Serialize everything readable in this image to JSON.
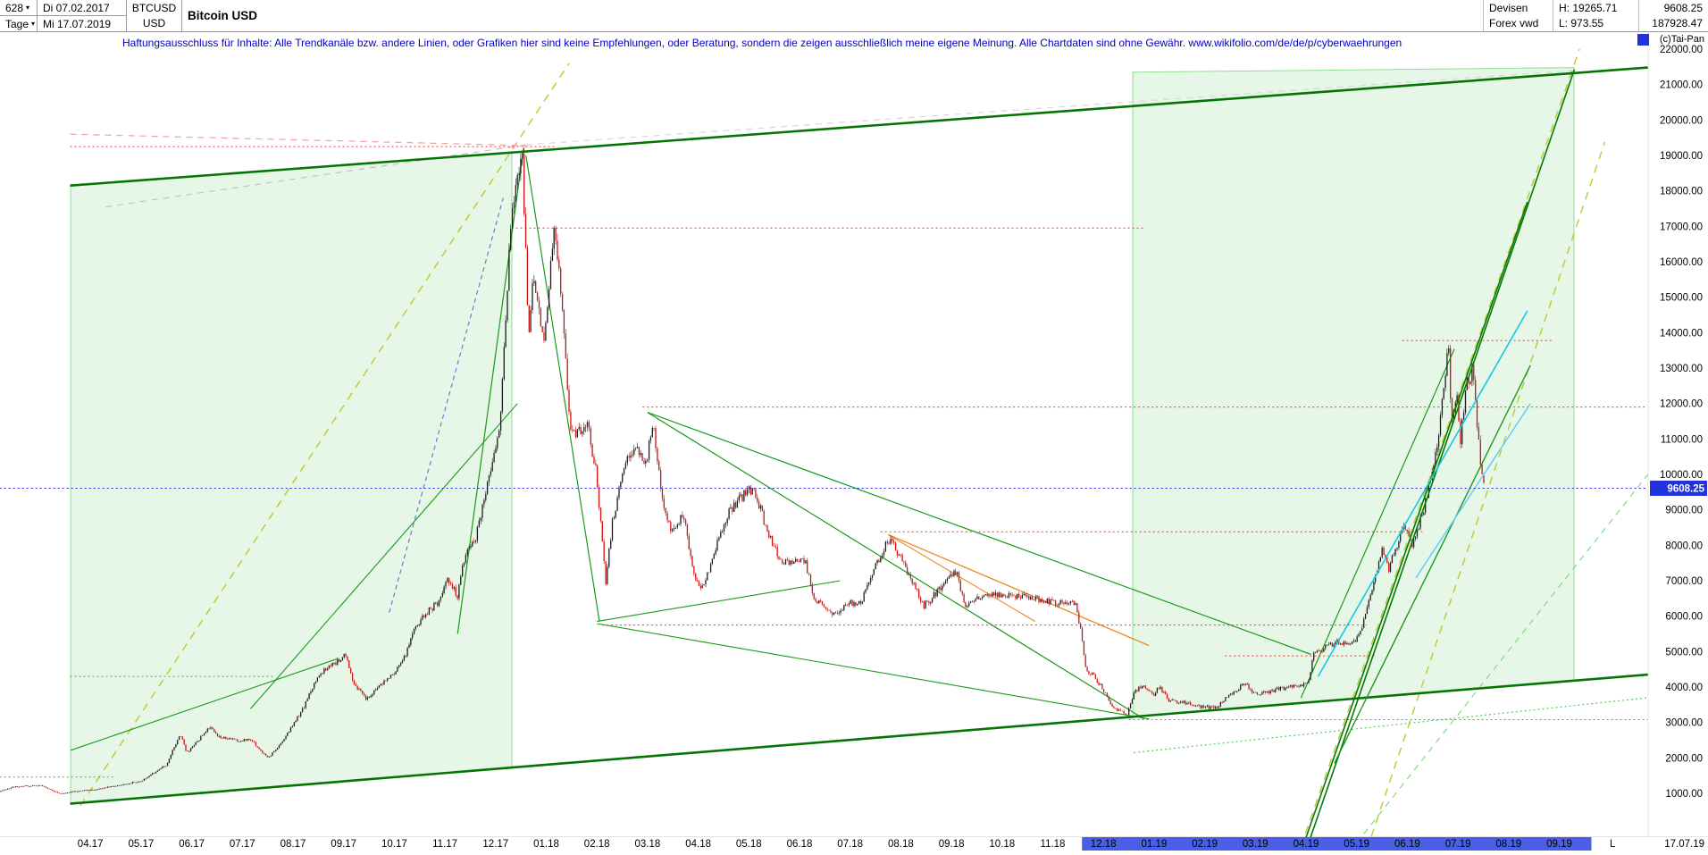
{
  "header": {
    "bars_count": "628",
    "period": "Tage",
    "caret": "▾",
    "start_date": "Di 07.02.2017",
    "end_date": "Mi 17.07.2019",
    "symbol": "BTCUSD",
    "currency": "USD",
    "title": "Bitcoin USD",
    "source1": "Devisen",
    "source2": "Forex vwd",
    "high_prefix": "H:",
    "high": "19265.71",
    "low_prefix": "L:",
    "low": "973.55",
    "last_price": "9608.25",
    "volume": "187928.47",
    "watermark": "(c)Tai-Pan"
  },
  "disclaimer": "Haftungsausschluss für Inhalte: Alle Trendkanäle bzw. andere Linien, oder Grafiken hier sind keine Empfehlungen, oder Beratung, sondern die zeigen ausschließlich meine eigene Meinung. Alle Chartdaten sind ohne Gewähr.  www.wikifolio.com/de/de/p/cyberwaehrungen",
  "chart_data": {
    "type": "candlestick",
    "symbol": "BTCUSD",
    "title": "Bitcoin USD",
    "x_unit": "months_from_04.17_tick",
    "y_unit": "USD",
    "ylim": [
      1000,
      22000
    ],
    "y_step": 1000,
    "high": 19265.71,
    "low": 973.55,
    "current_price": 9608.25,
    "price_tag": "9608.25",
    "x_tick_labels": [
      "04.17",
      "05.17",
      "06.17",
      "07.17",
      "08.17",
      "09.17",
      "10.17",
      "11.17",
      "12.17",
      "01.18",
      "02.18",
      "03.18",
      "04.18",
      "05.18",
      "06.18",
      "07.18",
      "08.18",
      "09.18",
      "10.18",
      "11.18",
      "12.18",
      "01.19",
      "02.19",
      "03.19",
      "04.19",
      "05.19",
      "06.19",
      "07.19",
      "08.19",
      "09.19"
    ],
    "x_highlight_from_index": 20,
    "x_highlight_color": "#4b5fe6",
    "last_marker": "L",
    "last_date": "17.07.19",
    "colors": {
      "up": "#1b1b1b",
      "down": "#cc1111",
      "channel_green": "#057405",
      "accent_blue": "#2233dd",
      "region_fill": "rgba(144,220,144,0.22)",
      "region_stroke": "rgba(80,200,80,0.6)"
    },
    "close_anchors": [
      [
        -1.8,
        1056
      ],
      [
        -1.5,
        1190
      ],
      [
        -1.0,
        1230
      ],
      [
        -0.6,
        990
      ],
      [
        -0.2,
        1080
      ],
      [
        0.0,
        1090
      ],
      [
        0.5,
        1210
      ],
      [
        1.0,
        1350
      ],
      [
        1.5,
        1800
      ],
      [
        1.77,
        2680
      ],
      [
        1.9,
        2150
      ],
      [
        2.1,
        2450
      ],
      [
        2.37,
        2920
      ],
      [
        2.5,
        2620
      ],
      [
        2.9,
        2480
      ],
      [
        3.15,
        2540
      ],
      [
        3.5,
        1990
      ],
      [
        3.7,
        2280
      ],
      [
        3.97,
        2850
      ],
      [
        4.2,
        3400
      ],
      [
        4.5,
        4350
      ],
      [
        4.9,
        4740
      ],
      [
        5.03,
        4950
      ],
      [
        5.2,
        4120
      ],
      [
        5.45,
        3640
      ],
      [
        5.8,
        4180
      ],
      [
        6.0,
        4360
      ],
      [
        6.2,
        4820
      ],
      [
        6.4,
        5620
      ],
      [
        6.63,
        6080
      ],
      [
        6.9,
        6440
      ],
      [
        7.03,
        7080
      ],
      [
        7.25,
        6560
      ],
      [
        7.4,
        7800
      ],
      [
        7.6,
        8180
      ],
      [
        7.87,
        9880
      ],
      [
        8.1,
        11600
      ],
      [
        8.3,
        17200
      ],
      [
        8.52,
        19280
      ],
      [
        8.65,
        13900
      ],
      [
        8.75,
        15750
      ],
      [
        8.9,
        14300
      ],
      [
        8.97,
        13900
      ],
      [
        9.16,
        17080
      ],
      [
        9.35,
        14200
      ],
      [
        9.45,
        11600
      ],
      [
        9.55,
        11100
      ],
      [
        9.8,
        11500
      ],
      [
        9.97,
        10200
      ],
      [
        10.1,
        8300
      ],
      [
        10.17,
        6920
      ],
      [
        10.3,
        8600
      ],
      [
        10.55,
        10300
      ],
      [
        10.8,
        10700
      ],
      [
        10.97,
        10300
      ],
      [
        11.1,
        11480
      ],
      [
        11.3,
        9100
      ],
      [
        11.5,
        8300
      ],
      [
        11.7,
        8900
      ],
      [
        11.95,
        7000
      ],
      [
        12.1,
        6800
      ],
      [
        12.35,
        7990
      ],
      [
        12.6,
        8900
      ],
      [
        12.8,
        9320
      ],
      [
        13.1,
        9620
      ],
      [
        13.3,
        8700
      ],
      [
        13.6,
        7580
      ],
      [
        13.9,
        7490
      ],
      [
        14.1,
        7620
      ],
      [
        14.3,
        6480
      ],
      [
        14.6,
        6080
      ],
      [
        14.8,
        6180
      ],
      [
        14.97,
        6390
      ],
      [
        15.2,
        6350
      ],
      [
        15.5,
        7390
      ],
      [
        15.75,
        8190
      ],
      [
        15.97,
        7740
      ],
      [
        16.2,
        7010
      ],
      [
        16.45,
        6290
      ],
      [
        16.6,
        6490
      ],
      [
        16.9,
        7010
      ],
      [
        17.1,
        7290
      ],
      [
        17.25,
        6310
      ],
      [
        17.5,
        6490
      ],
      [
        17.8,
        6640
      ],
      [
        18.0,
        6590
      ],
      [
        18.3,
        6580
      ],
      [
        18.6,
        6540
      ],
      [
        18.9,
        6420
      ],
      [
        19.1,
        6380
      ],
      [
        19.45,
        6340
      ],
      [
        19.55,
        5590
      ],
      [
        19.65,
        4490
      ],
      [
        19.8,
        4340
      ],
      [
        19.95,
        4040
      ],
      [
        20.2,
        3400
      ],
      [
        20.47,
        3220
      ],
      [
        20.6,
        3840
      ],
      [
        20.8,
        4080
      ],
      [
        20.97,
        3740
      ],
      [
        21.1,
        4020
      ],
      [
        21.3,
        3610
      ],
      [
        21.6,
        3560
      ],
      [
        21.9,
        3450
      ],
      [
        22.2,
        3410
      ],
      [
        22.6,
        3890
      ],
      [
        22.8,
        4110
      ],
      [
        22.97,
        3830
      ],
      [
        23.2,
        3850
      ],
      [
        23.5,
        3950
      ],
      [
        23.8,
        4020
      ],
      [
        23.97,
        4090
      ],
      [
        24.06,
        4140
      ],
      [
        24.13,
        4880
      ],
      [
        24.3,
        5040
      ],
      [
        24.6,
        5290
      ],
      [
        24.8,
        5240
      ],
      [
        24.97,
        5320
      ],
      [
        25.1,
        5690
      ],
      [
        25.35,
        6990
      ],
      [
        25.5,
        7940
      ],
      [
        25.62,
        7290
      ],
      [
        25.85,
        8240
      ],
      [
        25.97,
        8540
      ],
      [
        26.1,
        7990
      ],
      [
        26.3,
        8890
      ],
      [
        26.6,
        10760
      ],
      [
        26.81,
        13760
      ],
      [
        26.87,
        11480
      ],
      [
        26.97,
        12280
      ],
      [
        27.05,
        10990
      ],
      [
        27.16,
        12480
      ],
      [
        27.29,
        12940
      ],
      [
        27.45,
        10280
      ],
      [
        27.52,
        9608.25
      ]
    ],
    "levels": [
      {
        "price": 19250,
        "t1": -0.4,
        "t2": 9.2,
        "color": "#ee3333",
        "dash": "2,3"
      },
      {
        "price": 16950,
        "t1": 8.4,
        "t2": 20.8,
        "color": "#ee3333",
        "dash": "2,3"
      },
      {
        "price": 11900,
        "t1": 10.9,
        "t2": 30.7,
        "color": "#ee3333",
        "dash": "2,3"
      },
      {
        "price": 13780,
        "t1": 25.9,
        "t2": 28.9,
        "color": "#ee3333",
        "dash": "2,3"
      },
      {
        "price": 8380,
        "t1": 15.6,
        "t2": 26.3,
        "color": "#ee3333",
        "dash": "2,3"
      },
      {
        "price": 5750,
        "t1": 10.1,
        "t2": 25.2,
        "color": "#ee3333",
        "dash": "2,3"
      },
      {
        "price": 4880,
        "t1": 22.4,
        "t2": 25.4,
        "color": "#ee3333",
        "dash": "2,3"
      },
      {
        "price": 3080,
        "t1": 20.5,
        "t2": 30.75,
        "color": "#33bb33",
        "dash": "2,3"
      },
      {
        "price": 4300,
        "t1": -0.4,
        "t2": 3.6,
        "color": "#33bb33",
        "dash": "2,3"
      },
      {
        "price": 1460,
        "t1": -1.79,
        "t2": 0.5,
        "color": "#33bb33",
        "dash": "2,3"
      },
      {
        "price": 9608.25,
        "t1": -1.79,
        "t2": 30.75,
        "color": "#2222ee",
        "dash": "2,3",
        "front": true
      }
    ],
    "trendlines": [
      {
        "p1": [
          -0.4,
          18150
        ],
        "p2": [
          30.75,
          21480
        ],
        "color": "#057405",
        "w": 2.6,
        "front": true
      },
      {
        "p1": [
          -0.4,
          708
        ],
        "p2": [
          30.75,
          4350
        ],
        "color": "#057405",
        "w": 2.6,
        "front": true
      },
      {
        "p1": [
          -0.2,
          650
        ],
        "p2": [
          9.45,
          21600
        ],
        "color": "#b8cc2a",
        "w": 1.4,
        "dash": "9,7"
      },
      {
        "p1": [
          23.8,
          -900
        ],
        "p2": [
          29.4,
          22000
        ],
        "color": "#b8cc2a",
        "w": 1.4,
        "dash": "9,7"
      },
      {
        "p1": [
          25.2,
          -600
        ],
        "p2": [
          29.9,
          19380
        ],
        "color": "#b8cc2a",
        "w": 1.4,
        "dash": "9,7"
      },
      {
        "p1": [
          25.0,
          -400
        ],
        "p2": [
          30.75,
          10000
        ],
        "color": "#7ddd7d",
        "w": 1.2,
        "dash": "7,6"
      },
      {
        "p1": [
          0.3,
          17550
        ],
        "p2": [
          8.6,
          19300
        ],
        "color": "#c4c4c4",
        "w": 1.2,
        "dash": "7,6"
      },
      {
        "p1": [
          8.6,
          19300
        ],
        "p2": [
          29.3,
          21400
        ],
        "color": "#d8d8d8",
        "w": 1.2,
        "dash": "7,6"
      },
      {
        "p1": [
          -0.4,
          19600
        ],
        "p2": [
          8.6,
          19280
        ],
        "color": "#f0a0a0",
        "w": 1.2,
        "dash": "7,6"
      },
      {
        "p1": [
          5.9,
          6100
        ],
        "p2": [
          8.15,
          17800
        ],
        "color": "#7777cc",
        "w": 1.2,
        "dash": "5,4"
      },
      {
        "p1": [
          15.75,
          8300
        ],
        "p2": [
          20.9,
          5170
        ],
        "color": "#ee8822",
        "w": 1.3
      },
      {
        "p1": [
          15.75,
          8300
        ],
        "p2": [
          18.65,
          5850
        ],
        "color": "#ee8822",
        "w": 1.1
      },
      {
        "p1": [
          11.0,
          11750
        ],
        "p2": [
          20.8,
          3100
        ],
        "color": "#1a9a1a",
        "w": 1.2
      },
      {
        "p1": [
          11.0,
          11750
        ],
        "p2": [
          24.1,
          4920
        ],
        "color": "#1a9a1a",
        "w": 1.2
      },
      {
        "p1": [
          10.0,
          5850
        ],
        "p2": [
          14.8,
          7000
        ],
        "color": "#1a9a1a",
        "w": 1.1
      },
      {
        "p1": [
          10.0,
          5790
        ],
        "p2": [
          20.9,
          3100
        ],
        "color": "#1a9a1a",
        "w": 1.1
      },
      {
        "p1": [
          8.6,
          19000
        ],
        "p2": [
          10.05,
          5850
        ],
        "color": "#1a9a1a",
        "w": 1.2
      },
      {
        "p1": [
          -0.39,
          2215
        ],
        "p2": [
          4.88,
          4800
        ],
        "color": "#1a9a1a",
        "w": 1.1
      },
      {
        "p1": [
          3.16,
          3385
        ],
        "p2": [
          8.43,
          12000
        ],
        "color": "#1a9a1a",
        "w": 1.1
      },
      {
        "p1": [
          7.25,
          5500
        ],
        "p2": [
          8.55,
          19200
        ],
        "color": "#1a9a1a",
        "w": 1.2
      },
      {
        "p1": [
          23.9,
          3690
        ],
        "p2": [
          26.93,
          13540
        ],
        "color": "#1a9a1a",
        "w": 1.2
      },
      {
        "p1": [
          20.6,
          2150
        ],
        "p2": [
          30.75,
          3700
        ],
        "color": "#44cc44",
        "w": 1.1,
        "dash": "2,3"
      },
      {
        "p1": [
          24.0,
          -615
        ],
        "p2": [
          29.3,
          21430
        ],
        "color": "#067806",
        "w": 1.6,
        "front": true
      },
      {
        "p1": [
          23.91,
          -615
        ],
        "p2": [
          28.37,
          17690
        ],
        "color": "#067806",
        "w": 1.6,
        "front": true
      },
      {
        "p1": [
          24.56,
          1850
        ],
        "p2": [
          28.43,
          13080
        ],
        "color": "#1a9a1a",
        "w": 1.4,
        "front": true
      },
      {
        "p1": [
          24.24,
          4300
        ],
        "p2": [
          28.37,
          14615
        ],
        "color": "#17c6e8",
        "w": 1.6,
        "front": true
      },
      {
        "p1": [
          26.17,
          7080
        ],
        "p2": [
          28.43,
          12000
        ],
        "color": "#66ccff",
        "w": 1.5,
        "front": true
      }
    ],
    "regions": [
      {
        "points": [
          [
            -0.39,
            18155
          ],
          [
            8.32,
            19085
          ],
          [
            8.32,
            1728
          ],
          [
            -0.39,
            708
          ]
        ]
      },
      {
        "points": [
          [
            20.58,
            21350
          ],
          [
            29.29,
            21480
          ],
          [
            29.29,
            4185
          ],
          [
            20.58,
            3165
          ]
        ]
      }
    ]
  }
}
